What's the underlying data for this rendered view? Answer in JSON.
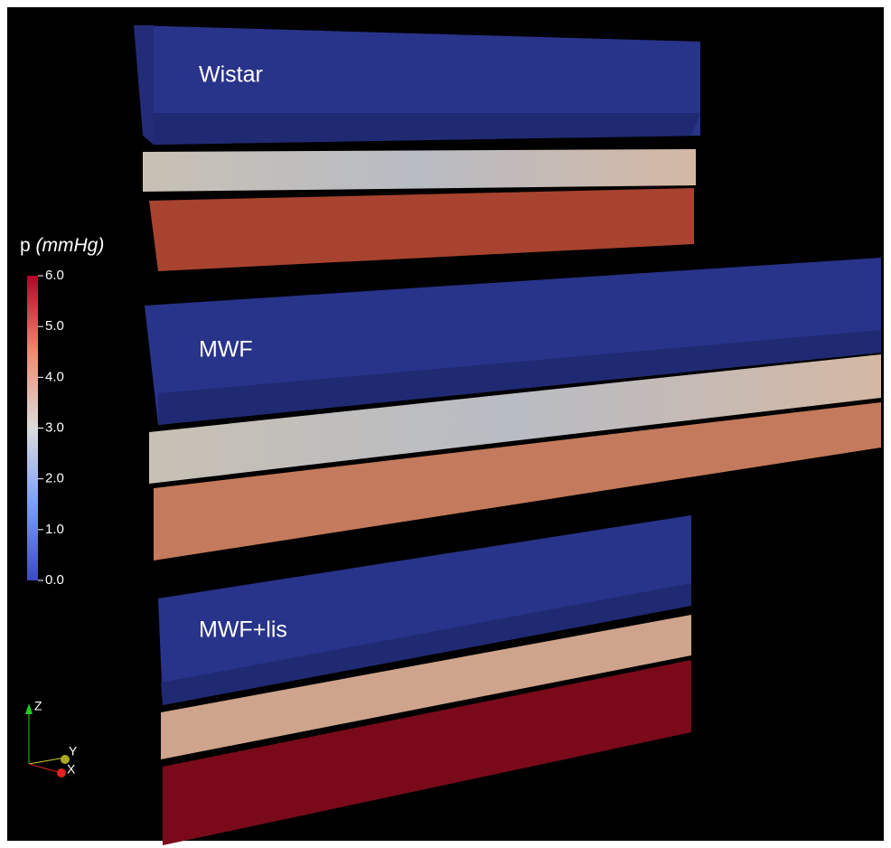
{
  "panels": [
    {
      "label": "Wistar"
    },
    {
      "label": "MWF"
    },
    {
      "label": "MWF+lis"
    }
  ],
  "colorbar": {
    "title": "p",
    "unit": "(mmHg)",
    "range": [
      0,
      6
    ],
    "ticks": [
      {
        "value": 6,
        "label": "6.0"
      },
      {
        "value": 5,
        "label": "5.0"
      },
      {
        "value": 4,
        "label": "4.0"
      },
      {
        "value": 3,
        "label": "3.0"
      },
      {
        "value": 2,
        "label": "2.0"
      },
      {
        "value": 1,
        "label": "1.0"
      },
      {
        "value": 0,
        "label": "0.0"
      }
    ]
  },
  "axes_triad": {
    "z": "Z",
    "y": "Y",
    "x": "X"
  }
}
